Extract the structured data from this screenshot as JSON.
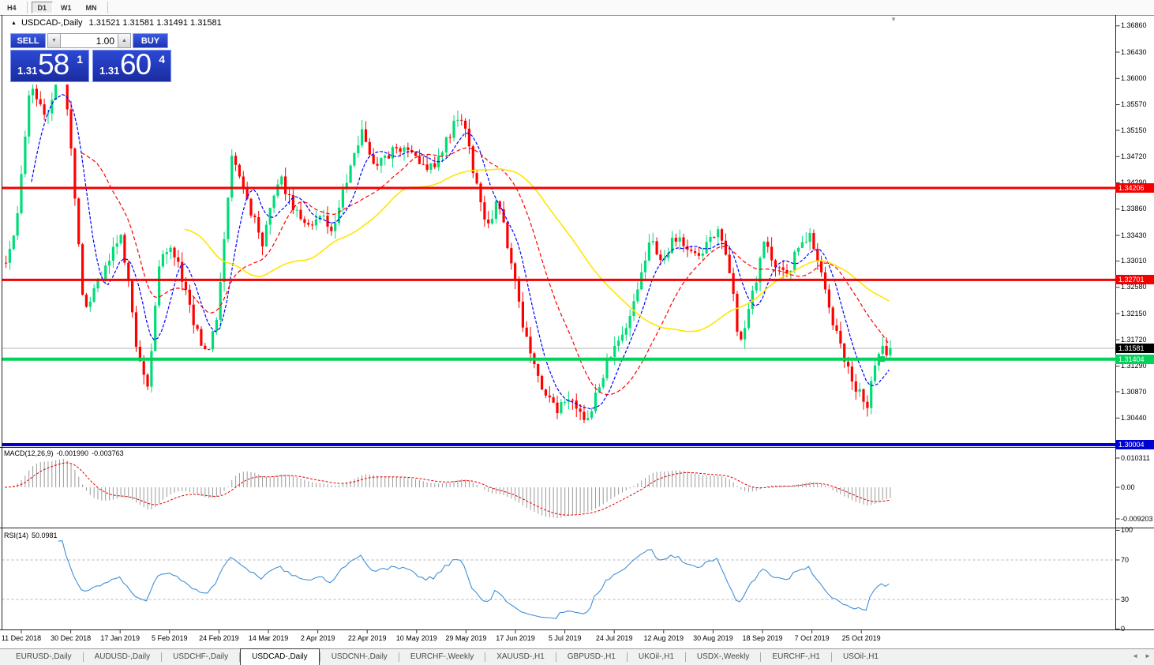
{
  "toolbar": {
    "timeframes": [
      "H4",
      "D1",
      "W1",
      "MN"
    ],
    "active": "D1"
  },
  "symbol_bar": {
    "collapse_icon": "▲",
    "symbol": "USDCAD-,Daily",
    "ohlc": "1.31521 1.31581 1.31491 1.31581"
  },
  "trade_widget": {
    "sell_label": "SELL",
    "buy_label": "BUY",
    "volume": "1.00",
    "spin_down_icon": "▼",
    "spin_up_icon": "▲",
    "sell_price": {
      "prefix": "1.31",
      "big": "58",
      "sup": "1"
    },
    "buy_price": {
      "prefix": "1.31",
      "big": "60",
      "sup": "4"
    }
  },
  "chart_data": {
    "type": "candlestick",
    "symbol": "USDCAD",
    "timeframe": "Daily",
    "shift_icon": "▼",
    "ylim": [
      1.29965,
      1.37025
    ],
    "yticks": [
      "1.36860",
      "1.36430",
      "1.36000",
      "1.35570",
      "1.35150",
      "1.34720",
      "1.34290",
      "1.33860",
      "1.33430",
      "1.33010",
      "1.32580",
      "1.32150",
      "1.31720",
      "1.31290",
      "1.30870",
      "1.30440"
    ],
    "xticks": [
      "11 Dec 2018",
      "30 Dec 2018",
      "17 Jan 2019",
      "5 Feb 2019",
      "24 Feb 2019",
      "14 Mar 2019",
      "2 Apr 2019",
      "22 Apr 2019",
      "10 May 2019",
      "29 May 2019",
      "17 Jun 2019",
      "5 Jul 2019",
      "24 Jul 2019",
      "12 Aug 2019",
      "30 Aug 2019",
      "18 Sep 2019",
      "7 Oct 2019",
      "25 Oct 2019"
    ],
    "price_levels": [
      {
        "price": 1.34206,
        "label": "1.34206",
        "color": "#f40000",
        "width": 3,
        "type": "resistance-line"
      },
      {
        "price": 1.32701,
        "label": "1.32701",
        "color": "#f40000",
        "width": 3,
        "type": "resistance-line"
      },
      {
        "price": 1.31581,
        "label": "1.31581",
        "color": "#000000",
        "width": 1,
        "type": "current-price-line"
      },
      {
        "price": 1.31404,
        "label": "1.31404",
        "color": "#00d25a",
        "width": 4,
        "type": "support-line"
      },
      {
        "price": 1.30004,
        "label": "1.30004",
        "color": "#0000d2",
        "width": 4,
        "type": "support-line"
      }
    ],
    "last_close": 1.31581,
    "candle_count": 232,
    "colors": {
      "bull": "#00dc78",
      "bear": "#ff0000",
      "current_price_line": "#b4b4b4"
    },
    "moving_averages": [
      {
        "name": "fast-ma",
        "period": 8,
        "color": "#0000ff",
        "dash": "4,2"
      },
      {
        "name": "mid-ma",
        "period": 21,
        "color": "#ff0000",
        "dash": "5,3"
      },
      {
        "name": "slow-ma",
        "period": 48,
        "color": "#ffe600",
        "dash": ""
      }
    ],
    "price_path_anchors": [
      [
        6,
        1.3302
      ],
      [
        18,
        1.3348
      ],
      [
        30,
        1.35
      ],
      [
        38,
        1.36
      ],
      [
        48,
        1.356
      ],
      [
        58,
        1.354
      ],
      [
        68,
        1.359
      ],
      [
        78,
        1.3625
      ],
      [
        86,
        1.353
      ],
      [
        94,
        1.3392
      ],
      [
        105,
        1.3212
      ],
      [
        122,
        1.3274
      ],
      [
        136,
        1.329
      ],
      [
        150,
        1.3352
      ],
      [
        162,
        1.326
      ],
      [
        172,
        1.3152
      ],
      [
        186,
        1.3098
      ],
      [
        200,
        1.33
      ],
      [
        214,
        1.333
      ],
      [
        228,
        1.3278
      ],
      [
        247,
        1.3186
      ],
      [
        262,
        1.3141
      ],
      [
        274,
        1.3215
      ],
      [
        292,
        1.3468
      ],
      [
        312,
        1.34
      ],
      [
        332,
        1.333
      ],
      [
        352,
        1.3443
      ],
      [
        368,
        1.3394
      ],
      [
        388,
        1.3355
      ],
      [
        403,
        1.338
      ],
      [
        420,
        1.3355
      ],
      [
        437,
        1.3432
      ],
      [
        457,
        1.3514
      ],
      [
        472,
        1.3457
      ],
      [
        488,
        1.3475
      ],
      [
        500,
        1.3488
      ],
      [
        522,
        1.347
      ],
      [
        542,
        1.3452
      ],
      [
        558,
        1.3477
      ],
      [
        572,
        1.352
      ],
      [
        586,
        1.354
      ],
      [
        600,
        1.3432
      ],
      [
        616,
        1.3355
      ],
      [
        630,
        1.3405
      ],
      [
        648,
        1.3288
      ],
      [
        663,
        1.3186
      ],
      [
        682,
        1.3098
      ],
      [
        702,
        1.3057
      ],
      [
        722,
        1.307
      ],
      [
        741,
        1.3031
      ],
      [
        757,
        1.3097
      ],
      [
        772,
        1.3147
      ],
      [
        788,
        1.3186
      ],
      [
        803,
        1.3238
      ],
      [
        822,
        1.334
      ],
      [
        837,
        1.3302
      ],
      [
        852,
        1.334
      ],
      [
        868,
        1.3328
      ],
      [
        882,
        1.3302
      ],
      [
        897,
        1.334
      ],
      [
        910,
        1.3354
      ],
      [
        925,
        1.3264
      ],
      [
        936,
        1.316
      ],
      [
        952,
        1.3251
      ],
      [
        967,
        1.3328
      ],
      [
        982,
        1.3296
      ],
      [
        997,
        1.3283
      ],
      [
        1012,
        1.3328
      ],
      [
        1027,
        1.334
      ],
      [
        1042,
        1.3264
      ],
      [
        1057,
        1.3186
      ],
      [
        1072,
        1.3122
      ],
      [
        1087,
        1.3083
      ],
      [
        1097,
        1.3064
      ],
      [
        1107,
        1.3134
      ],
      [
        1114,
        1.316
      ],
      [
        1121,
        1.3141
      ],
      [
        1127,
        1.31581
      ]
    ],
    "macd": {
      "label": "MACD(12,26,9)",
      "value_main": "-0.001990",
      "value_signal": "-0.003763",
      "yticks": [
        "0.010311",
        "0.00",
        "-0.009203"
      ],
      "histogram_color": "#9a9a9a",
      "signal_color": "#e00000"
    },
    "rsi": {
      "label": "RSI(14)",
      "value": "50.0981",
      "yticks": [
        "100",
        "70",
        "30",
        "0"
      ],
      "levels": [
        70,
        30
      ],
      "color": "#4090d8",
      "level_color": "#b4b4b4"
    }
  },
  "tab_bar": {
    "tabs": [
      "EURUSD-,Daily",
      "AUDUSD-,Daily",
      "USDCHF-,Daily",
      "USDCAD-,Daily",
      "USDCNH-,Daily",
      "EURCHF-,Weekly",
      "XAUUSD-,H1",
      "GBPUSD-,H1",
      "UKOil-,H1",
      "USDX-,Weekly",
      "EURCHF-,H1",
      "USOil-,H1"
    ],
    "active_index": 3,
    "scroll_left_icon": "◄",
    "scroll_right_icon": "►"
  }
}
